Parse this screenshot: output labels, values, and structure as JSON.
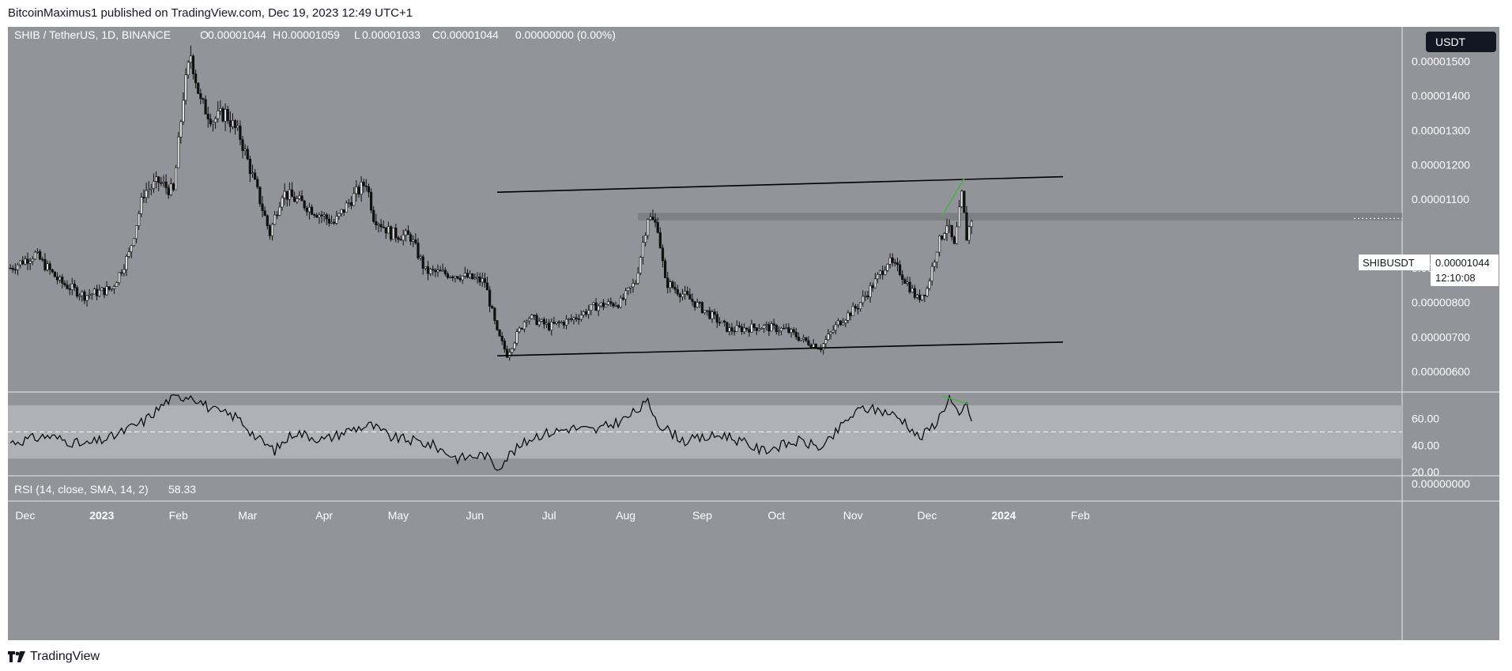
{
  "header": {
    "publisher_line": "BitcoinMaximus1 published on TradingView.com, Dec 19, 2023 12:49 UTC+1"
  },
  "legend": {
    "symbol": "SHIB / TetherUS, 1D, BINANCE",
    "o_label": "O",
    "o_value": "0.00001044",
    "h_label": "H",
    "h_value": "0.00001059",
    "l_label": "L",
    "l_value": "0.00001033",
    "c_label": "C",
    "c_value": "0.00001044",
    "change": "0.00000000 (0.00%)"
  },
  "currency_button": "USDT",
  "price_tag": {
    "symbol": "SHIBUSDT",
    "price": "0.00001044",
    "countdown": "12:10:08"
  },
  "rsi_legend": {
    "label": "RSI (14, close, SMA, 14, 2)",
    "value": "58.33"
  },
  "footer": {
    "brand": "TradingView"
  },
  "colors": {
    "background": "#93949a",
    "candle": "#111111",
    "trend_line": "#000000",
    "green_line": "#4caf50",
    "zone": "#7b7c82",
    "rsi_band": "#b0b1b6",
    "rsi_line": "#000000"
  },
  "chart_data": [
    {
      "type": "candlestick",
      "title": "SHIB / TetherUS, 1D, BINANCE",
      "y_axis_ticks": [
        "0.00001500",
        "0.00001400",
        "0.00001300",
        "0.00001200",
        "0.00001100",
        "0.00000900",
        "0.00000800",
        "0.00000700",
        "0.00000600"
      ],
      "ylim": [
        5.4e-06,
        1.6e-05
      ],
      "x_axis_ticks": [
        "Dec",
        "2023",
        "Feb",
        "Mar",
        "Apr",
        "May",
        "Jun",
        "Jul",
        "Aug",
        "Sep",
        "Oct",
        "Nov",
        "Dec",
        "2024",
        "Feb"
      ],
      "close_path": [
        [
          "2022-11-25",
          9e-06
        ],
        [
          "2022-12-05",
          9.4e-06
        ],
        [
          "2022-12-15",
          8.6e-06
        ],
        [
          "2022-12-25",
          8.2e-06
        ],
        [
          "2023-01-05",
          8.4e-06
        ],
        [
          "2023-01-12",
          9.4e-06
        ],
        [
          "2023-01-18",
          1.12e-05
        ],
        [
          "2023-01-24",
          1.15e-05
        ],
        [
          "2023-01-30",
          1.12e-05
        ],
        [
          "2023-02-03",
          1.4e-05
        ],
        [
          "2023-02-06",
          1.52e-05
        ],
        [
          "2023-02-10",
          1.38e-05
        ],
        [
          "2023-02-15",
          1.33e-05
        ],
        [
          "2023-02-20",
          1.35e-05
        ],
        [
          "2023-02-26",
          1.28e-05
        ],
        [
          "2023-03-05",
          1.12e-05
        ],
        [
          "2023-03-10",
          1e-05
        ],
        [
          "2023-03-15",
          1.12e-05
        ],
        [
          "2023-03-25",
          1.08e-05
        ],
        [
          "2023-04-05",
          1.03e-05
        ],
        [
          "2023-04-12",
          1.1e-05
        ],
        [
          "2023-04-18",
          1.15e-05
        ],
        [
          "2023-04-21",
          1.05e-05
        ],
        [
          "2023-04-28",
          1e-05
        ],
        [
          "2023-05-06",
          9.9e-06
        ],
        [
          "2023-05-12",
          8.9e-06
        ],
        [
          "2023-05-25",
          8.8e-06
        ],
        [
          "2023-06-05",
          8.6e-06
        ],
        [
          "2023-06-10",
          7.1e-06
        ],
        [
          "2023-06-14",
          6.5e-06
        ],
        [
          "2023-06-22",
          7.6e-06
        ],
        [
          "2023-07-01",
          7.3e-06
        ],
        [
          "2023-07-10",
          7.5e-06
        ],
        [
          "2023-07-20",
          7.9e-06
        ],
        [
          "2023-07-30",
          8e-06
        ],
        [
          "2023-08-05",
          8.6e-06
        ],
        [
          "2023-08-10",
          1.05e-05
        ],
        [
          "2023-08-14",
          1.02e-05
        ],
        [
          "2023-08-17",
          8.6e-06
        ],
        [
          "2023-08-25",
          8.2e-06
        ],
        [
          "2023-09-05",
          7.6e-06
        ],
        [
          "2023-09-12",
          7.2e-06
        ],
        [
          "2023-09-25",
          7.3e-06
        ],
        [
          "2023-10-05",
          7.2e-06
        ],
        [
          "2023-10-12",
          6.9e-06
        ],
        [
          "2023-10-19",
          6.7e-06
        ],
        [
          "2023-10-26",
          7.4e-06
        ],
        [
          "2023-11-03",
          7.9e-06
        ],
        [
          "2023-11-10",
          8.6e-06
        ],
        [
          "2023-11-15",
          9.2e-06
        ],
        [
          "2023-11-20",
          8.9e-06
        ],
        [
          "2023-11-27",
          8.1e-06
        ],
        [
          "2023-12-01",
          8.4e-06
        ],
        [
          "2023-12-05",
          9.6e-06
        ],
        [
          "2023-12-09",
          1.03e-05
        ],
        [
          "2023-12-12",
          9.6e-06
        ],
        [
          "2023-12-15",
          1.11e-05
        ],
        [
          "2023-12-17",
          9.9e-06
        ],
        [
          "2023-12-19",
          1.044e-05
        ]
      ],
      "current_price": 1.044e-05,
      "resistance_zone": [
        1.038e-05,
        1.06e-05
      ],
      "channel_upper": [
        [
          "2023-06-10",
          1.12e-05
        ],
        [
          "2024-01-25",
          1.165e-05
        ]
      ],
      "channel_lower": [
        [
          "2023-06-10",
          6.45e-06
        ],
        [
          "2024-01-25",
          6.85e-06
        ]
      ],
      "green_line": [
        [
          "2023-12-07",
          1.05e-05
        ],
        [
          "2023-12-16",
          1.16e-05
        ]
      ]
    },
    {
      "type": "line",
      "title": "RSI (14, close, SMA, 14, 2)",
      "y_axis_ticks": [
        "60.00",
        "40.00",
        "20.00"
      ],
      "ylim": [
        17,
        80
      ],
      "bands": [
        30,
        50,
        70
      ],
      "x": [
        "2022-11-25",
        "2022-12-10",
        "2022-12-25",
        "2023-01-05",
        "2023-01-18",
        "2023-01-28",
        "2023-02-06",
        "2023-02-15",
        "2023-02-25",
        "2023-03-05",
        "2023-03-12",
        "2023-03-20",
        "2023-04-01",
        "2023-04-12",
        "2023-04-20",
        "2023-04-28",
        "2023-05-08",
        "2023-05-15",
        "2023-05-25",
        "2023-06-05",
        "2023-06-10",
        "2023-06-15",
        "2023-06-25",
        "2023-07-10",
        "2023-07-20",
        "2023-08-01",
        "2023-08-10",
        "2023-08-15",
        "2023-08-25",
        "2023-09-10",
        "2023-09-25",
        "2023-10-10",
        "2023-10-20",
        "2023-10-30",
        "2023-11-05",
        "2023-11-15",
        "2023-11-22",
        "2023-11-28",
        "2023-12-05",
        "2023-12-10",
        "2023-12-14",
        "2023-12-17",
        "2023-12-19"
      ],
      "y": [
        42,
        47,
        40,
        46,
        58,
        74,
        78,
        66,
        61,
        45,
        36,
        50,
        44,
        52,
        55,
        46,
        43,
        40,
        30,
        33,
        23,
        33,
        47,
        53,
        51,
        60,
        72,
        55,
        43,
        48,
        36,
        43,
        38,
        60,
        68,
        65,
        58,
        45,
        58,
        76,
        60,
        72,
        58.33
      ],
      "divergence_line": [
        [
          "2023-12-07",
          77
        ],
        [
          "2023-12-18",
          71
        ]
      ]
    },
    {
      "type": "axis",
      "y_axis_ticks": [
        "0.00000000"
      ]
    }
  ]
}
